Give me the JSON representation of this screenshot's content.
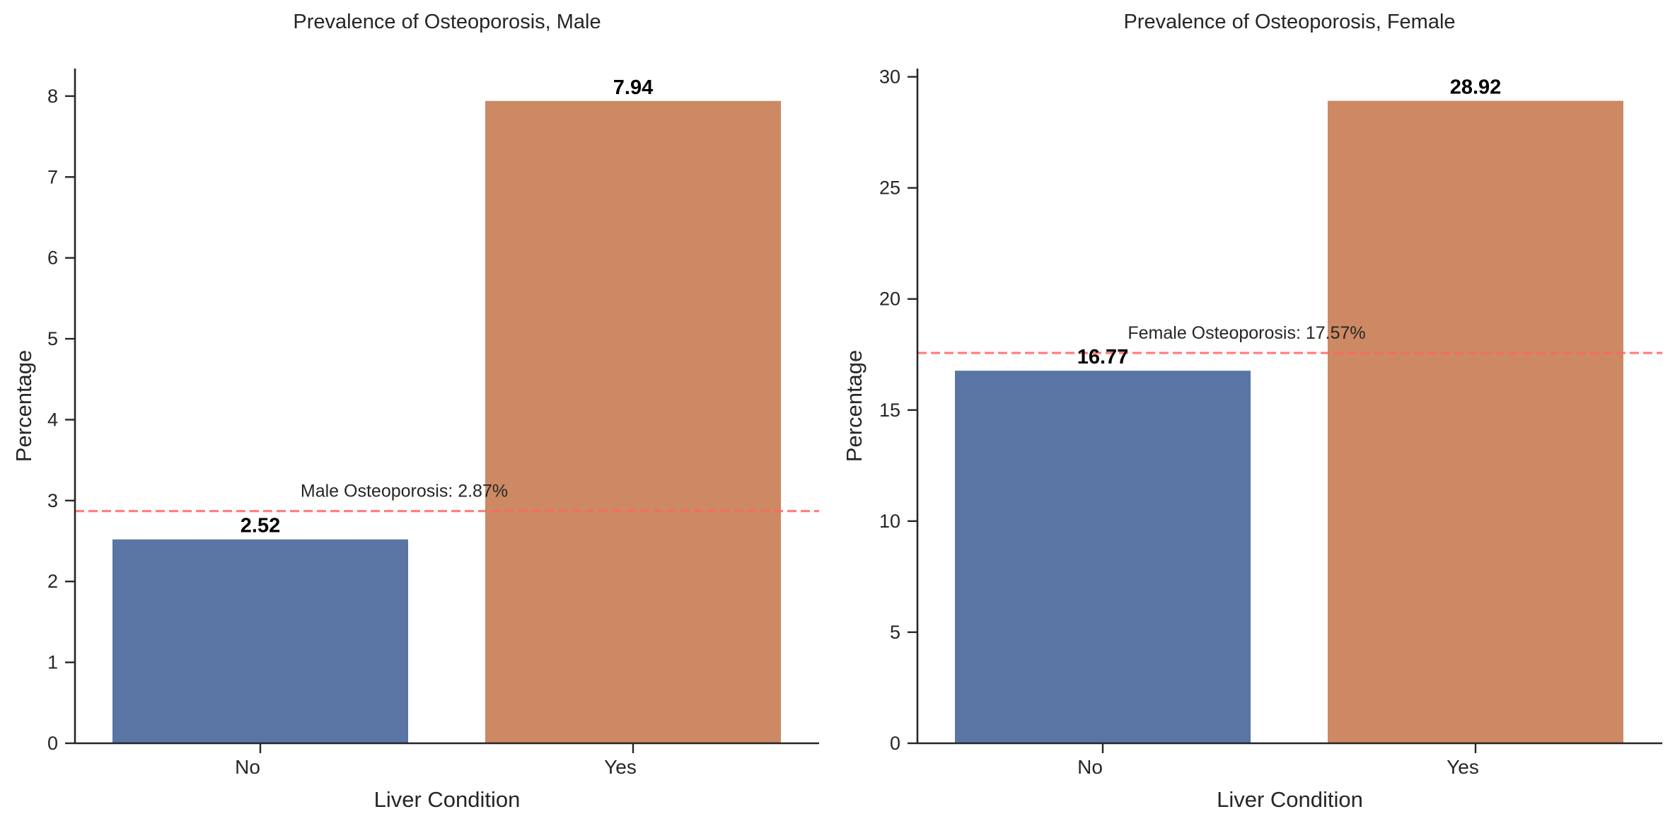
{
  "chart_data": [
    {
      "type": "bar",
      "title": "Prevalence of Osteoporosis, Male",
      "xlabel": "Liver Condition",
      "ylabel": "Percentage",
      "categories": [
        "No",
        "Yes"
      ],
      "values": [
        2.52,
        7.94
      ],
      "value_labels": [
        "2.52",
        "7.94"
      ],
      "bar_colors": [
        "#5975a4",
        "#cc8963"
      ],
      "ylim": [
        0,
        8.34
      ],
      "yticks": [
        0,
        1,
        2,
        3,
        4,
        5,
        6,
        7,
        8
      ],
      "reference_line": {
        "value": 2.87,
        "label": "Male Osteoporosis: 2.87%",
        "color": "#ff6666",
        "style": "dashed"
      },
      "grid": false
    },
    {
      "type": "bar",
      "title": "Prevalence of Osteoporosis, Female",
      "xlabel": "Liver Condition",
      "ylabel": "Percentage",
      "categories": [
        "No",
        "Yes"
      ],
      "values": [
        16.77,
        28.92
      ],
      "value_labels": [
        "16.77",
        "28.92"
      ],
      "bar_colors": [
        "#5975a4",
        "#cc8963"
      ],
      "ylim": [
        0,
        30.37
      ],
      "yticks": [
        0,
        5,
        10,
        15,
        20,
        25,
        30
      ],
      "reference_line": {
        "value": 17.57,
        "label": "Female Osteoporosis: 17.57%",
        "color": "#ff6666",
        "style": "dashed"
      },
      "grid": false
    }
  ]
}
